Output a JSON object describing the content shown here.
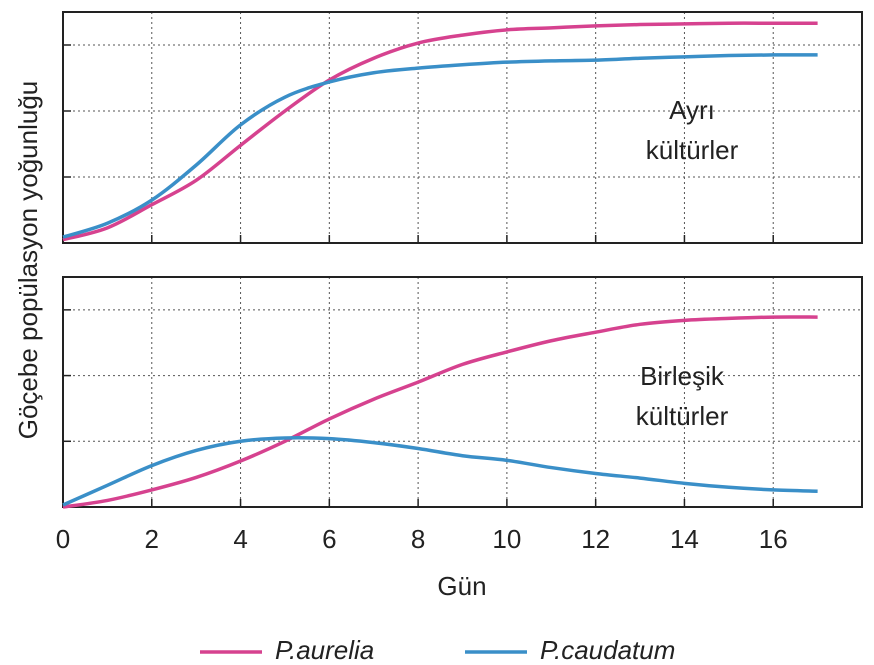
{
  "y_label": "Göçebe popülasyon yoğunluğu",
  "x_label": "Gün",
  "chart_data": [
    {
      "type": "line",
      "annotation": [
        "Ayrı",
        "kültürler"
      ],
      "x": [
        0,
        1,
        2,
        3,
        4,
        5,
        6,
        7,
        8,
        9,
        10,
        11,
        12,
        13,
        14,
        15,
        16,
        17
      ],
      "series": [
        {
          "name": "P.aurelia",
          "color": "#d6428f",
          "values": [
            0.05,
            0.23,
            0.58,
            0.95,
            1.48,
            2.0,
            2.47,
            2.8,
            3.03,
            3.15,
            3.23,
            3.26,
            3.29,
            3.31,
            3.32,
            3.33,
            3.33,
            3.33
          ]
        },
        {
          "name": "P.caudatum",
          "color": "#3a8fc8",
          "values": [
            0.09,
            0.3,
            0.65,
            1.18,
            1.79,
            2.21,
            2.44,
            2.58,
            2.65,
            2.7,
            2.74,
            2.76,
            2.77,
            2.8,
            2.82,
            2.84,
            2.85,
            2.85
          ]
        }
      ],
      "xlim": [
        0,
        18
      ],
      "xticks": [
        0,
        2,
        4,
        6,
        8,
        10,
        12,
        14,
        16
      ],
      "ylim": [
        0,
        3.5
      ],
      "yticks": [
        1,
        2,
        3
      ],
      "grid": true
    },
    {
      "type": "line",
      "annotation": [
        "Birleşik",
        "kültürler"
      ],
      "x": [
        0,
        1,
        2,
        3,
        4,
        5,
        6,
        7,
        8,
        9,
        10,
        11,
        12,
        13,
        14,
        15,
        16,
        17
      ],
      "series": [
        {
          "name": "P.aurelia",
          "color": "#d6428f",
          "values": [
            0,
            0.1,
            0.26,
            0.45,
            0.7,
            1.0,
            1.34,
            1.64,
            1.9,
            2.17,
            2.36,
            2.53,
            2.66,
            2.78,
            2.84,
            2.87,
            2.89,
            2.89
          ]
        },
        {
          "name": "P.caudatum",
          "color": "#3a8fc8",
          "values": [
            0.03,
            0.33,
            0.63,
            0.86,
            1.0,
            1.05,
            1.04,
            0.98,
            0.89,
            0.78,
            0.71,
            0.6,
            0.51,
            0.44,
            0.36,
            0.3,
            0.26,
            0.24
          ]
        }
      ],
      "xlim": [
        0,
        18
      ],
      "xticks": [
        0,
        2,
        4,
        6,
        8,
        10,
        12,
        14,
        16
      ],
      "ylim": [
        0,
        3.5
      ],
      "yticks": [
        1,
        2,
        3
      ],
      "grid": true
    }
  ]
}
